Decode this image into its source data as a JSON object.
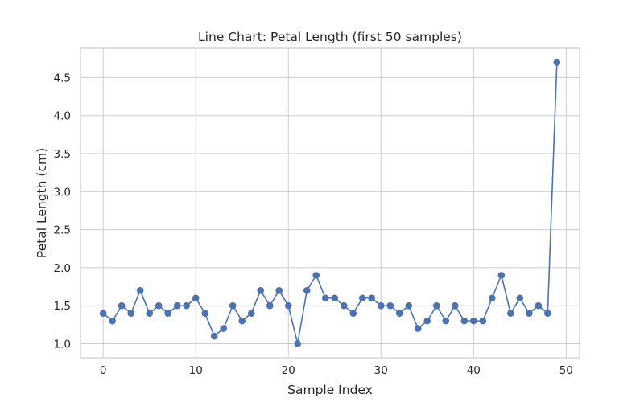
{
  "chart_data": {
    "type": "line",
    "title": "Line Chart: Petal Length (first 50 samples)",
    "xlabel": "Sample Index",
    "ylabel": "Petal Length (cm)",
    "xlim": [
      -2.45,
      51.45
    ],
    "ylim": [
      0.815,
      4.885
    ],
    "x_ticks": [
      0,
      10,
      20,
      30,
      40,
      50
    ],
    "y_ticks": [
      1.0,
      1.5,
      2.0,
      2.5,
      3.0,
      3.5,
      4.0,
      4.5
    ],
    "y_tick_labels": [
      "1.0",
      "1.5",
      "2.0",
      "2.5",
      "3.0",
      "3.5",
      "4.0",
      "4.5"
    ],
    "grid": true,
    "legend": "none",
    "colors": {
      "line": "#4c72b0",
      "grid": "#cccccc",
      "frame": "#cccccc"
    },
    "series": [
      {
        "x": [
          0,
          1,
          2,
          3,
          4,
          5,
          6,
          7,
          8,
          9,
          10,
          11,
          12,
          13,
          14,
          15,
          16,
          17,
          18,
          19,
          20,
          21,
          22,
          23,
          24,
          25,
          26,
          27,
          28,
          29,
          30,
          31,
          32,
          33,
          34,
          35,
          36,
          37,
          38,
          39,
          40,
          41,
          42,
          43,
          44,
          45,
          46,
          47,
          48,
          49
        ],
        "values": [
          1.4,
          1.3,
          1.5,
          1.4,
          1.7,
          1.4,
          1.5,
          1.4,
          1.5,
          1.5,
          1.6,
          1.4,
          1.1,
          1.2,
          1.5,
          1.3,
          1.4,
          1.7,
          1.5,
          1.7,
          1.5,
          1.0,
          1.7,
          1.9,
          1.6,
          1.6,
          1.5,
          1.4,
          1.6,
          1.6,
          1.5,
          1.5,
          1.4,
          1.5,
          1.2,
          1.3,
          1.5,
          1.3,
          1.5,
          1.3,
          1.3,
          1.3,
          1.6,
          1.9,
          1.4,
          1.6,
          1.4,
          1.5,
          1.4,
          4.7
        ]
      }
    ]
  }
}
